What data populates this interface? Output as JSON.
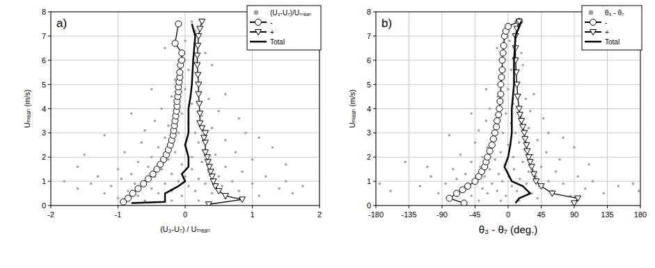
{
  "chart_data": [
    {
      "type": "scatter",
      "title": "a)",
      "xlabel": "(U₃-U₇) / Uₘₑₐₙ",
      "ylabel": "Uₘₑₐₙ (m/s)",
      "xlim": [
        -2,
        2
      ],
      "xticks": [
        -2,
        -1,
        0,
        1,
        2
      ],
      "ylim": [
        0,
        8
      ],
      "yticks": [
        0,
        1,
        2,
        3,
        4,
        5,
        6,
        7,
        8
      ],
      "grid": true,
      "legend": "upper right",
      "series": [
        {
          "name": "(U₃-U₇)/Uₘₑₐₙ",
          "type": "scatter",
          "color": "#a0a0a0",
          "marker": "circle",
          "x": [
            -1.8,
            -1.6,
            -1.5,
            -1.4,
            -1.3,
            -1.2,
            -1.1,
            -1.0,
            -1.0,
            -0.95,
            -0.9,
            -0.85,
            -0.8,
            -0.75,
            -0.7,
            -0.7,
            -0.65,
            -0.6,
            -0.6,
            -0.55,
            -0.5,
            -0.5,
            -0.45,
            -0.45,
            -0.4,
            -0.4,
            -0.35,
            -0.35,
            -0.3,
            -0.3,
            -0.25,
            -0.25,
            -0.2,
            -0.2,
            -0.2,
            -0.15,
            -0.15,
            -0.1,
            -0.1,
            -0.1,
            -0.05,
            -0.05,
            -0.05,
            0,
            0,
            0,
            0,
            0.05,
            0.05,
            0.05,
            0.1,
            0.1,
            0.1,
            0.15,
            0.15,
            0.15,
            0.2,
            0.2,
            0.2,
            0.25,
            0.25,
            0.3,
            0.3,
            0.3,
            0.35,
            0.35,
            0.4,
            0.4,
            0.45,
            0.5,
            0.5,
            0.55,
            0.6,
            0.6,
            0.7,
            0.75,
            0.8,
            0.85,
            0.9,
            1.0,
            1.0,
            1.1,
            1.2,
            1.3,
            1.4,
            1.5,
            1.6,
            1.75,
            0.1,
            -0.3,
            0.4,
            -0.5,
            0.6,
            -0.8,
            0.8,
            -1.2,
            1.1,
            -1.6,
            1.5,
            -0.2,
            0.2,
            -0.6,
            0.6
          ],
          "values": [
            1.0,
            0.7,
            2.1,
            0.9,
            1.2,
            0.5,
            0.8,
            1.5,
            0.3,
            1.1,
            2.2,
            0.6,
            1.3,
            0.9,
            1.8,
            0.4,
            2.6,
            1.0,
            3.1,
            1.6,
            0.7,
            2.0,
            1.2,
            3.5,
            2.4,
            0.5,
            1.5,
            4.0,
            0.9,
            2.8,
            1.9,
            3.3,
            0.6,
            4.5,
            1.3,
            2.2,
            5.2,
            1.0,
            3.0,
            6.0,
            1.7,
            3.8,
            0.4,
            2.5,
            4.8,
            1.2,
            6.8,
            3.4,
            0.8,
            5.6,
            2.0,
            1.5,
            4.2,
            3.0,
            7.2,
            0.6,
            2.6,
            5.0,
            1.1,
            3.7,
            1.8,
            2.3,
            6.3,
            0.9,
            4.4,
            1.4,
            3.2,
            0.5,
            2.1,
            1.2,
            3.9,
            0.8,
            2.7,
            1.6,
            1.0,
            2.2,
            0.6,
            1.4,
            3.0,
            0.9,
            1.9,
            0.4,
            1.2,
            2.4,
            0.7,
            1.0,
            0.5,
            0.8,
            7.6,
            6.5,
            5.8,
            4.8,
            4.6,
            3.8,
            3.6,
            2.9,
            2.8,
            1.6,
            1.7,
            0.2,
            0.2,
            0.2,
            0.3
          ]
        },
        {
          "name": "-",
          "type": "line",
          "color": "#000000",
          "marker": "circle-open",
          "x": [
            -0.92,
            -0.85,
            -0.78,
            -0.7,
            -0.62,
            -0.55,
            -0.48,
            -0.42,
            -0.37,
            -0.32,
            -0.28,
            -0.25,
            -0.22,
            -0.2,
            -0.18,
            -0.17,
            -0.16,
            -0.15,
            -0.14,
            -0.13,
            -0.12,
            -0.12,
            -0.11,
            -0.1,
            -0.1,
            -0.09,
            -0.08,
            -0.08,
            -0.07,
            -0.05,
            -0.05,
            -0.15,
            -0.1
          ],
          "values": [
            0.15,
            0.3,
            0.5,
            0.7,
            0.9,
            1.1,
            1.3,
            1.5,
            1.7,
            1.9,
            2.1,
            2.3,
            2.5,
            2.7,
            2.9,
            3.1,
            3.3,
            3.5,
            3.7,
            3.9,
            4.1,
            4.3,
            4.5,
            4.7,
            4.9,
            5.1,
            5.3,
            5.5,
            5.8,
            6.0,
            6.3,
            6.7,
            7.5
          ]
        },
        {
          "name": "+",
          "type": "line",
          "color": "#000000",
          "marker": "triangle-down-open",
          "x": [
            0.35,
            0.85,
            0.6,
            0.5,
            0.45,
            0.42,
            0.4,
            0.38,
            0.36,
            0.34,
            0.33,
            0.3,
            0.3,
            0.28,
            0.3,
            0.25,
            0.22,
            0.22,
            0.21,
            0.2,
            0.2,
            0.19,
            0.18,
            0.18,
            0.19,
            0.2,
            0.22,
            0.25
          ],
          "values": [
            0.05,
            0.25,
            0.4,
            0.6,
            0.8,
            1.0,
            1.2,
            1.4,
            1.6,
            1.8,
            2.0,
            2.2,
            2.6,
            2.8,
            3.0,
            3.2,
            3.4,
            3.8,
            4.2,
            4.6,
            5.0,
            5.4,
            5.8,
            6.2,
            6.6,
            7.0,
            7.3,
            7.6
          ]
        },
        {
          "name": "Total",
          "type": "line",
          "color": "#000000",
          "marker": "none",
          "x": [
            -0.8,
            -0.3,
            -0.3,
            -0.1,
            0,
            -0.05,
            0.05,
            0.05,
            0,
            0.05,
            0.05,
            0.08,
            0.1,
            0.12,
            0.15,
            0.1
          ],
          "values": [
            0.1,
            0.15,
            0.5,
            0.8,
            1.0,
            1.3,
            1.6,
            2.0,
            2.5,
            3.0,
            4.0,
            4.5,
            5.0,
            6.0,
            7.0,
            7.5
          ]
        }
      ]
    },
    {
      "type": "scatter",
      "title": "b)",
      "xlabel": "θ₃ - θ₇ (deg.)",
      "ylabel": "Uₘₑₐₙ (m/s)",
      "xlim": [
        -180,
        180
      ],
      "xticks": [
        -180,
        -135,
        -90,
        -45,
        0,
        45,
        90,
        135,
        180
      ],
      "ylim": [
        0,
        8
      ],
      "yticks": [
        0,
        1,
        2,
        3,
        4,
        5,
        6,
        7,
        8
      ],
      "grid": true,
      "legend": "upper right",
      "series": [
        {
          "name": "θ₃ - θ₇",
          "type": "scatter",
          "color": "#a0a0a0",
          "marker": "circle",
          "x": [
            -175,
            -160,
            -140,
            -120,
            -105,
            -95,
            -85,
            -75,
            -80,
            -70,
            -65,
            -60,
            -58,
            -55,
            -50,
            -50,
            -45,
            -42,
            -40,
            -38,
            -35,
            -35,
            -32,
            -30,
            -28,
            -28,
            -25,
            -25,
            -22,
            -20,
            -18,
            -17,
            -15,
            -14,
            -13,
            -10,
            -10,
            -8,
            -7,
            -6,
            -4,
            -3,
            -3,
            0,
            0,
            1,
            2,
            4,
            5,
            4,
            7,
            8,
            7,
            10,
            12,
            12,
            15,
            13,
            16,
            18,
            20,
            22,
            18,
            25,
            24,
            28,
            28,
            32,
            33,
            38,
            30,
            42,
            40,
            45,
            55,
            52,
            60,
            65,
            55,
            75,
            70,
            85,
            95,
            90,
            105,
            115,
            130,
            150,
            10,
            -15,
            20,
            -30,
            35,
            -50,
            48,
            -80,
            75,
            -110,
            110,
            -10,
            15,
            -40,
            40,
            170,
            178
          ],
          "values": [
            0.9,
            0.6,
            1.8,
            0.8,
            1.2,
            0.5,
            0.9,
            1.5,
            0.3,
            1.1,
            2.1,
            0.6,
            1.3,
            0.9,
            1.8,
            0.4,
            2.6,
            1.0,
            3.1,
            1.6,
            0.7,
            2.0,
            1.2,
            3.5,
            2.4,
            0.5,
            1.5,
            4.0,
            0.9,
            2.8,
            1.9,
            3.3,
            0.6,
            4.5,
            1.3,
            2.2,
            5.2,
            1.0,
            3.0,
            6.0,
            1.7,
            3.8,
            0.4,
            2.5,
            4.8,
            1.2,
            6.8,
            3.4,
            0.8,
            5.6,
            2.0,
            1.5,
            4.2,
            3.0,
            7.2,
            0.6,
            2.6,
            5.0,
            1.1,
            3.7,
            1.8,
            2.3,
            6.3,
            0.9,
            4.4,
            1.4,
            3.2,
            0.5,
            2.1,
            1.2,
            3.9,
            0.8,
            2.7,
            1.6,
            1.0,
            2.2,
            0.6,
            1.4,
            3.0,
            0.9,
            1.9,
            0.4,
            1.2,
            2.4,
            0.7,
            1.0,
            0.5,
            0.8,
            7.6,
            6.5,
            5.8,
            4.8,
            4.6,
            3.8,
            3.6,
            2.9,
            2.8,
            1.6,
            1.7,
            0.2,
            0.2,
            0.2,
            0.3,
            0.9,
            0.6
          ]
        },
        {
          "name": "-",
          "type": "line",
          "color": "#000000",
          "marker": "circle-open",
          "x": [
            -60,
            -80,
            -70,
            -62,
            -55,
            -45,
            -40,
            -36,
            -32,
            -30,
            -28,
            -25,
            -22,
            -20,
            -18,
            -16,
            -15,
            -13,
            -12,
            -11,
            -10,
            -10,
            -9,
            -8,
            -8,
            -7,
            -6,
            -5,
            -3,
            0,
            15
          ],
          "values": [
            0.1,
            0.3,
            0.5,
            0.65,
            0.8,
            1.0,
            1.2,
            1.4,
            1.6,
            1.8,
            2.0,
            2.25,
            2.5,
            2.75,
            3.0,
            3.25,
            3.5,
            3.75,
            4.0,
            4.3,
            4.6,
            5.0,
            5.3,
            5.6,
            6.0,
            6.3,
            6.6,
            7.0,
            7.2,
            7.4,
            7.6
          ]
        },
        {
          "name": "+",
          "type": "line",
          "color": "#000000",
          "marker": "triangle-down-open",
          "x": [
            90,
            95,
            60,
            45,
            38,
            35,
            32,
            30,
            28,
            26,
            25,
            23,
            22,
            20,
            18,
            16,
            15,
            13,
            12,
            11,
            10,
            10,
            10,
            12,
            15
          ],
          "values": [
            0.1,
            0.3,
            0.5,
            0.8,
            1.0,
            1.3,
            1.6,
            1.8,
            2.0,
            2.25,
            2.5,
            2.75,
            3.0,
            3.25,
            3.5,
            3.75,
            4.0,
            4.5,
            5.0,
            5.5,
            6.0,
            6.5,
            7.0,
            7.3,
            7.6
          ]
        },
        {
          "name": "Total",
          "type": "line",
          "color": "#000000",
          "marker": "none",
          "x": [
            10,
            15,
            30,
            20,
            5,
            0,
            -5,
            0,
            3,
            5,
            5,
            8,
            8,
            10,
            18
          ],
          "values": [
            0.1,
            0.3,
            0.5,
            0.8,
            1.0,
            1.3,
            1.6,
            2.0,
            2.5,
            3.0,
            4.0,
            5.0,
            6.0,
            7.0,
            7.6
          ]
        }
      ]
    }
  ]
}
